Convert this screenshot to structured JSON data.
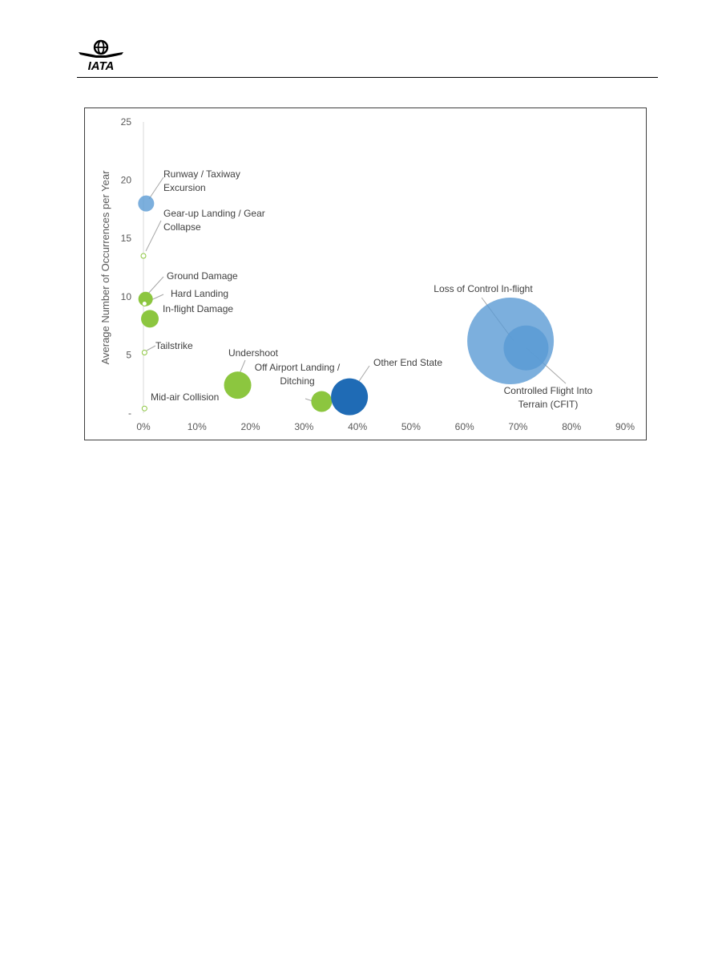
{
  "header": {
    "logo_text": "IATA",
    "logo_icon": "iata-globe-icon"
  },
  "chart_data": {
    "type": "scatter",
    "subtype": "bubble",
    "title": "",
    "xlabel": "",
    "ylabel": "Average Number of Occurrences per Year",
    "xlim": [
      0,
      0.9
    ],
    "ylim": [
      0,
      25
    ],
    "x_ticks": [
      "0%",
      "10%",
      "20%",
      "30%",
      "40%",
      "50%",
      "60%",
      "70%",
      "80%",
      "90%"
    ],
    "y_ticks": [
      "-",
      "5",
      "10",
      "15",
      "20",
      "25"
    ],
    "grid": false,
    "legend": "none",
    "colors": {
      "light_blue": "#5b9bd5",
      "dark_blue": "#1f6bb5",
      "green": "#8cc63f",
      "callout_line": "#a6a6a6",
      "axis_line": "#d9d9d9"
    },
    "points": [
      {
        "label": "Runway / Taxiway Excursion",
        "label_lines": [
          "Runway / Taxiway",
          "Excursion"
        ],
        "x": 0.005,
        "y": 18.0,
        "size": 10,
        "color": "#5b9bd5",
        "opacity": 0.8
      },
      {
        "label": "Gear-up Landing / Gear Collapse",
        "label_lines": [
          "Gear-up Landing / Gear",
          "Collapse"
        ],
        "x": 0.0,
        "y": 13.5,
        "size": 3,
        "color": "#8cc63f",
        "opacity": 1,
        "hollow": true
      },
      {
        "label": "Ground Damage",
        "label_lines": [
          "Ground Damage"
        ],
        "x": 0.004,
        "y": 9.8,
        "size": 9,
        "color": "#8cc63f",
        "opacity": 1
      },
      {
        "label": "Hard Landing",
        "label_lines": [
          "Hard Landing"
        ],
        "x": 0.002,
        "y": 9.4,
        "size": 3,
        "color": "#8cc63f",
        "opacity": 1,
        "hollow": true
      },
      {
        "label": "In-flight Damage",
        "label_lines": [
          "In-flight Damage"
        ],
        "x": 0.012,
        "y": 8.1,
        "size": 11,
        "color": "#8cc63f",
        "opacity": 1
      },
      {
        "label": "Tailstrike",
        "label_lines": [
          "Tailstrike"
        ],
        "x": 0.002,
        "y": 5.2,
        "size": 3,
        "color": "#8cc63f",
        "opacity": 1,
        "hollow": true
      },
      {
        "label": "Mid-air Collision",
        "label_lines": [
          "Mid-air Collision"
        ],
        "x": 0.002,
        "y": 0.4,
        "size": 3,
        "color": "#8cc63f",
        "opacity": 1,
        "hollow": true
      },
      {
        "label": "Undershoot",
        "label_lines": [
          "Undershoot"
        ],
        "x": 0.176,
        "y": 2.4,
        "size": 17,
        "color": "#8cc63f",
        "opacity": 1
      },
      {
        "label": "Off Airport Landing / Ditching",
        "label_lines": [
          "Off Airport Landing /",
          "Ditching"
        ],
        "x": 0.333,
        "y": 1.0,
        "size": 13,
        "color": "#8cc63f",
        "opacity": 1
      },
      {
        "label": "Other End State",
        "label_lines": [
          "Other End State"
        ],
        "x": 0.385,
        "y": 1.4,
        "size": 23,
        "color": "#1f6bb5",
        "opacity": 1
      },
      {
        "label": "Loss of Control In-flight",
        "label_lines": [
          "Loss of Control In-flight"
        ],
        "x": 0.686,
        "y": 6.2,
        "size": 54,
        "color": "#5b9bd5",
        "opacity": 0.8
      },
      {
        "label": "Controlled Flight Into Terrain (CFIT)",
        "label_lines": [
          "Controlled Flight Into",
          "Terrain (CFIT)"
        ],
        "x": 0.715,
        "y": 5.6,
        "size": 28,
        "color": "#5b9bd5",
        "opacity": 0.85
      }
    ]
  }
}
